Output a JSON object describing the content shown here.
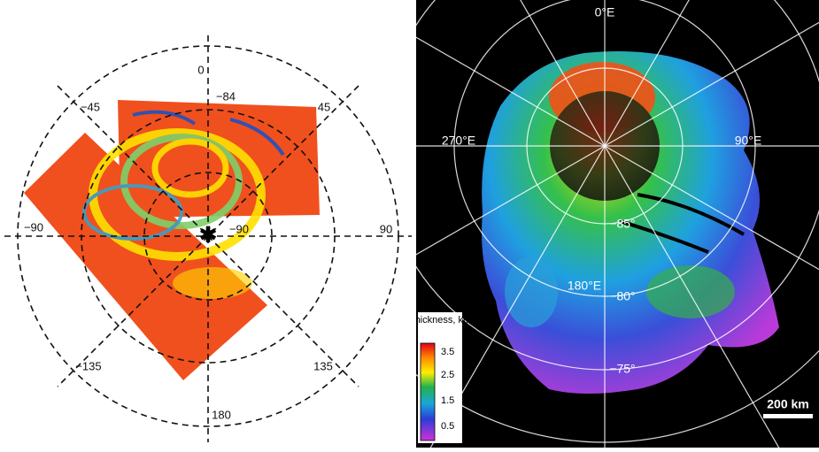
{
  "left_map": {
    "labels": [
      "0",
      "−84",
      "45",
      "−45",
      "−90",
      "90",
      "−90",
      "−135",
      "135",
      "180"
    ]
  },
  "right_map": {
    "labels": [
      "0°E",
      "270°E",
      "90°E",
      "−85°",
      "180°E",
      "−80°",
      "−75°"
    ]
  },
  "legend": {
    "title": "Thickness, km",
    "ticks": [
      "3.5",
      "2.5",
      "1.5",
      "0.5"
    ]
  },
  "scale_bar": "200 km"
}
